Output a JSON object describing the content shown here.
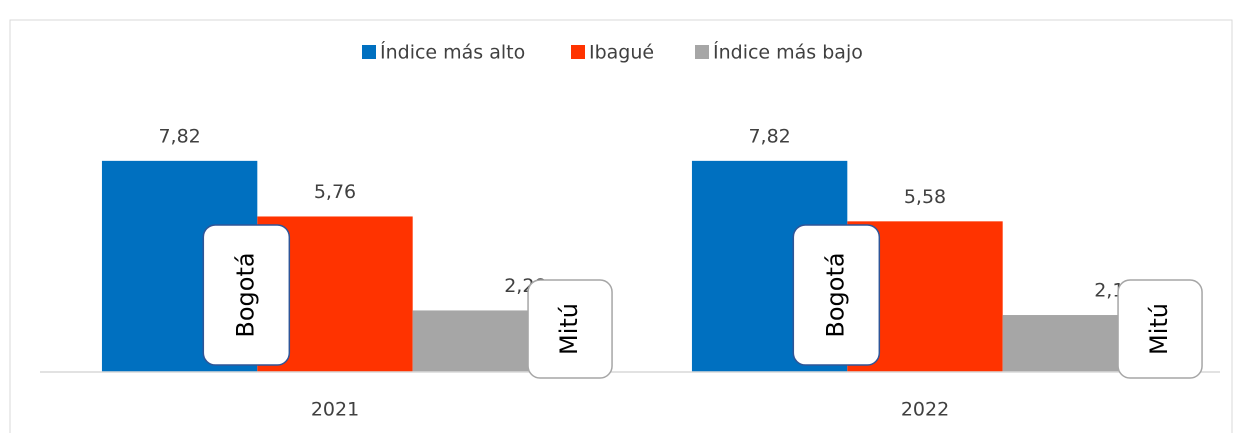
{
  "chart_data": {
    "type": "bar",
    "categories": [
      "2021",
      "2022"
    ],
    "series": [
      {
        "name": "Índice más alto",
        "color": "#0070c0",
        "values": [
          7.82,
          7.82
        ],
        "value_labels": [
          "7,82",
          "7,82"
        ],
        "annotations": [
          "Bogotá",
          "Bogotá"
        ]
      },
      {
        "name": "Ibagué",
        "color": "#ff3300",
        "values": [
          5.76,
          5.58
        ],
        "value_labels": [
          "5,76",
          "5,58"
        ]
      },
      {
        "name": "Índice más bajo",
        "color": "#a6a6a6",
        "values": [
          2.28,
          2.11
        ],
        "value_labels": [
          "2,28",
          "2,11"
        ],
        "annotations": [
          "Mitú",
          "Mitú"
        ]
      }
    ],
    "ylim": [
      0,
      9
    ],
    "legend": "top"
  }
}
